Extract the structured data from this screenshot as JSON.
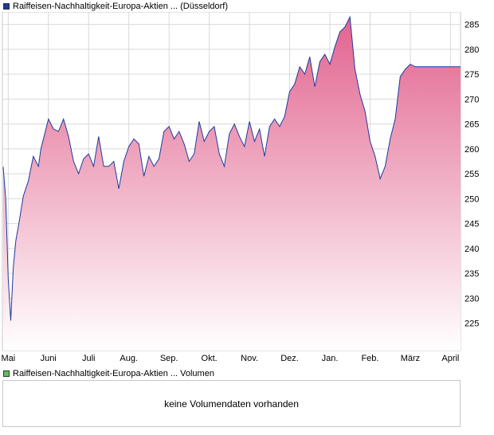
{
  "legend_main": "Raiffeisen-Nachhaltigkeit-Europa-Aktien ... (Düsseldorf)",
  "legend_volume": "Raiffeisen-Nachhaltigkeit-Europa-Aktien ... Volumen",
  "volume_message": "keine Volumendaten vorhanden",
  "colors": {
    "line": "#1f3a9e",
    "fill_top": "#e2638f",
    "fill_bottom": "#ffffff",
    "swatch_main": "#1f3a9e",
    "swatch_volume": "#5fbf5f",
    "grid": "#d9d9d9"
  },
  "chart_data": {
    "type": "area",
    "y_axis_position": "right",
    "ylim": [
      219.5,
      287.5
    ],
    "yticks": [
      225,
      230,
      235,
      240,
      245,
      250,
      255,
      260,
      265,
      270,
      275,
      280,
      285
    ],
    "month_labels": [
      "Mai",
      "Juni",
      "Juli",
      "Aug.",
      "Sep.",
      "Okt.",
      "Nov.",
      "Dez.",
      "Jan.",
      "Feb.",
      "März",
      "April"
    ],
    "month_positions": [
      0.1,
      0.9,
      1.7,
      2.5,
      3.3,
      4.1,
      4.9,
      5.7,
      6.5,
      7.3,
      8.1,
      8.9
    ],
    "grid": true,
    "series": [
      {
        "x": [
          0,
          0.05,
          0.1,
          0.15,
          0.2,
          0.25,
          0.32,
          0.4,
          0.5,
          0.6,
          0.7,
          0.75,
          0.8,
          0.9,
          1.0,
          1.1,
          1.2,
          1.3,
          1.4,
          1.5,
          1.6,
          1.7,
          1.8,
          1.9,
          2.0,
          2.1,
          2.2,
          2.3,
          2.4,
          2.5,
          2.6,
          2.7,
          2.8,
          2.9,
          3.0,
          3.1,
          3.2,
          3.3,
          3.4,
          3.5,
          3.6,
          3.7,
          3.8,
          3.9,
          4.0,
          4.1,
          4.2,
          4.3,
          4.4,
          4.5,
          4.6,
          4.7,
          4.8,
          4.9,
          5.0,
          5.1,
          5.2,
          5.3,
          5.4,
          5.5,
          5.6,
          5.7,
          5.8,
          5.9,
          6.0,
          6.1,
          6.2,
          6.3,
          6.4,
          6.5,
          6.6,
          6.7,
          6.8,
          6.9,
          7.0,
          7.1,
          7.2,
          7.3,
          7.4,
          7.5,
          7.6,
          7.7,
          7.8,
          7.9,
          8.0,
          8.1,
          8.2,
          8.3,
          8.4,
          8.5,
          8.6,
          8.7,
          8.8,
          8.9,
          9.0,
          9.1
        ],
        "values": [
          256.4,
          250,
          234,
          225.5,
          236,
          241.5,
          245.5,
          250.5,
          253.5,
          258.5,
          256.5,
          260.0,
          262.0,
          266.0,
          264.0,
          263.5,
          266.0,
          262.5,
          257.5,
          255.0,
          258.0,
          259.0,
          256.5,
          262.5,
          256.5,
          256.5,
          257.5,
          252.0,
          257.5,
          260.5,
          262.0,
          261.0,
          254.5,
          258.5,
          256.5,
          258.0,
          263.5,
          264.5,
          262.0,
          263.5,
          261.0,
          257.5,
          259.0,
          265.5,
          261.5,
          263.5,
          264.5,
          259.0,
          256.5,
          263.0,
          265.0,
          262.5,
          260.5,
          265.5,
          261.5,
          264.0,
          258.5,
          264.5,
          266.0,
          264.5,
          266.5,
          271.5,
          273.0,
          276.5,
          275.0,
          278.5,
          272.5,
          277.5,
          279.0,
          277.0,
          280.5,
          283.5,
          284.5,
          286.5,
          276.0,
          271.0,
          267.5,
          261.5,
          258.5,
          254.0,
          256.5,
          262.0,
          266.0,
          274.5,
          276.0,
          277.0,
          276.5,
          276.5,
          276.5,
          276.5,
          276.5,
          276.5,
          276.5,
          276.5,
          276.5,
          276.5
        ]
      }
    ]
  }
}
